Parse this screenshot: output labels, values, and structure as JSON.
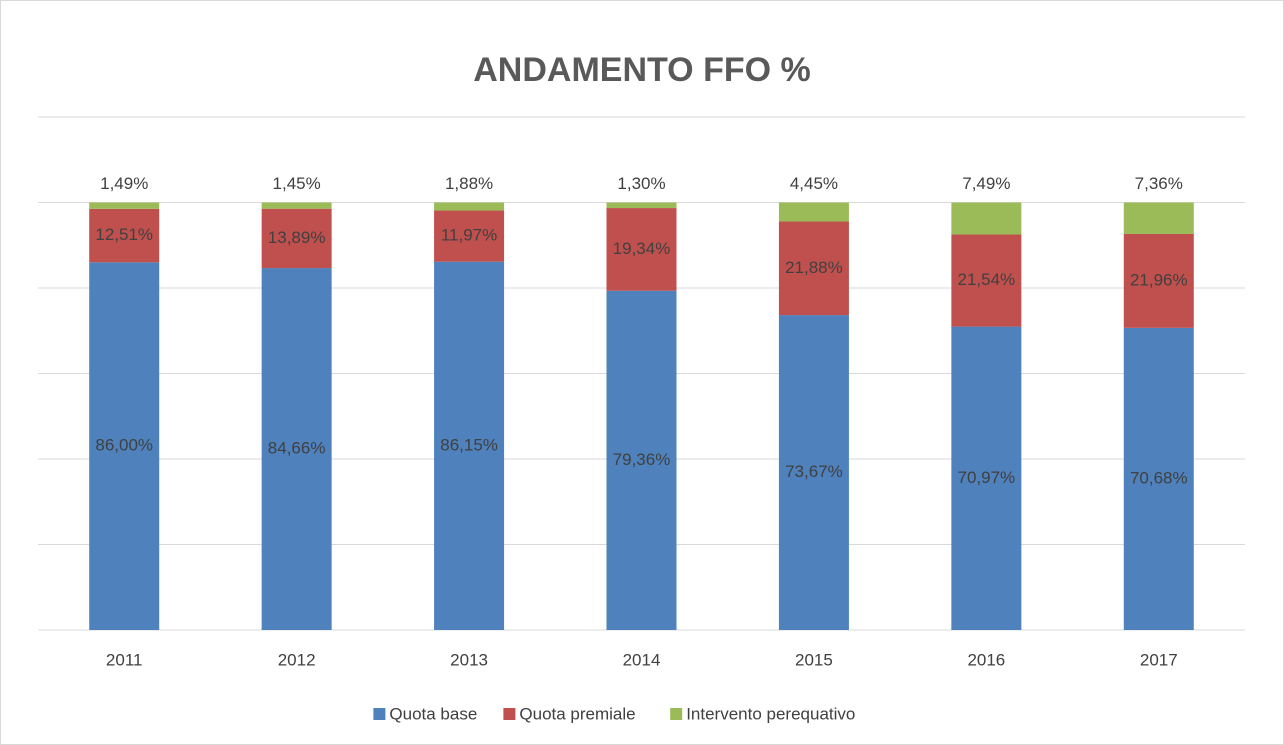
{
  "chart_data": {
    "type": "stacked_bar",
    "title": "ANDAMENTO FFO %",
    "categories": [
      "2011",
      "2012",
      "2013",
      "2014",
      "2015",
      "2016",
      "2017"
    ],
    "series": [
      {
        "name": "Quota base",
        "color": "#4f81bd",
        "values": [
          86.0,
          84.66,
          86.15,
          79.36,
          73.67,
          70.97,
          70.68
        ],
        "value_labels": [
          "86,00%",
          "84,66%",
          "86,15%",
          "79,36%",
          "73,67%",
          "70,97%",
          "70,68%"
        ]
      },
      {
        "name": "Quota premiale",
        "color": "#c0504d",
        "values": [
          12.51,
          13.89,
          11.97,
          19.34,
          21.88,
          21.54,
          21.96
        ],
        "value_labels": [
          "12,51%",
          "13,89%",
          "11,97%",
          "19,34%",
          "21,88%",
          "21,54%",
          "21,96%"
        ]
      },
      {
        "name": "Intervento perequativo",
        "color": "#9bbb59",
        "values": [
          1.49,
          1.45,
          1.88,
          1.3,
          4.45,
          7.49,
          7.36
        ],
        "value_labels": [
          "1,49%",
          "1,45%",
          "1,88%",
          "1,30%",
          "4,45%",
          "7,49%",
          "7,36%"
        ]
      }
    ],
    "ylim": [
      0,
      120
    ],
    "yticks": [
      0,
      20,
      40,
      60,
      80,
      100,
      120
    ],
    "grid": true,
    "legend": "bottom"
  }
}
